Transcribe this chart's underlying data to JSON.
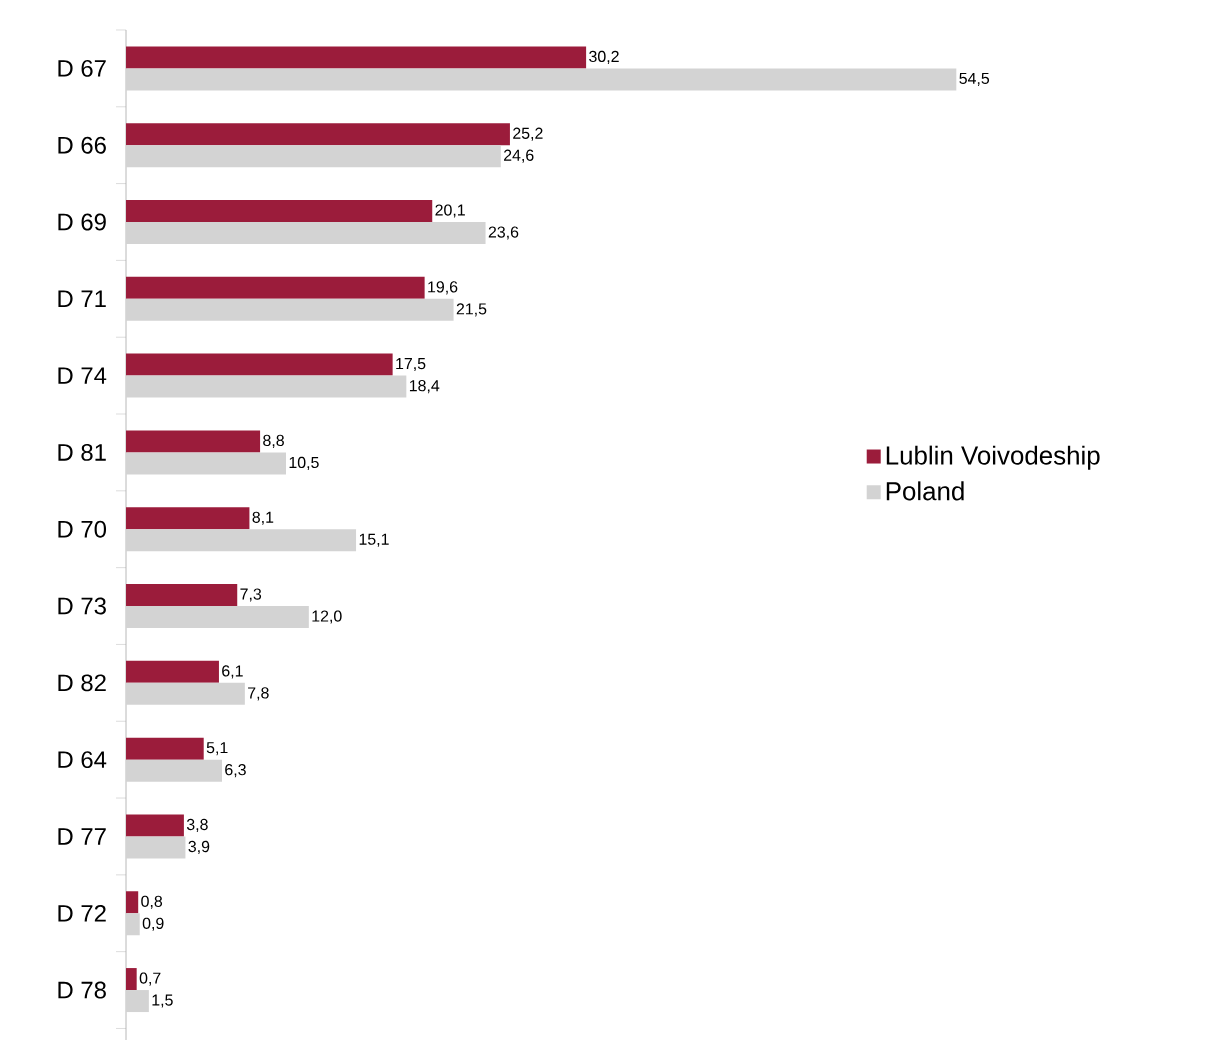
{
  "chart_data": {
    "type": "bar",
    "orientation": "horizontal",
    "categories": [
      "D 67",
      "D 66",
      "D 69",
      "D 71",
      "D 74",
      "D 81",
      "D 70",
      "D 73",
      "D 82",
      "D 64",
      "D 77",
      "D 72",
      "D 78"
    ],
    "series": [
      {
        "name": "Lublin Voivodeship",
        "color": "#9b1c3b",
        "values": [
          30.2,
          25.2,
          20.1,
          19.6,
          17.5,
          8.8,
          8.1,
          7.3,
          6.1,
          5.1,
          3.8,
          0.8,
          0.7
        ],
        "value_labels": [
          "30,2",
          "25,2",
          "20,1",
          "19,6",
          "17,5",
          "8,8",
          "8,1",
          "7,3",
          "6,1",
          "5,1",
          "3,8",
          "0,8",
          "0,7"
        ]
      },
      {
        "name": "Poland",
        "color": "#d3d3d3",
        "values": [
          54.5,
          24.6,
          23.6,
          21.5,
          18.4,
          10.5,
          15.1,
          12.0,
          7.8,
          6.3,
          3.9,
          0.9,
          1.5
        ],
        "value_labels": [
          "54,5",
          "24,6",
          "23,6",
          "21,5",
          "18,4",
          "10,5",
          "15,1",
          "12,0",
          "7,8",
          "6,3",
          "3,9",
          "0,9",
          "1,5"
        ]
      }
    ],
    "tick_labels": "y",
    "legend": "right",
    "grid": false
  }
}
